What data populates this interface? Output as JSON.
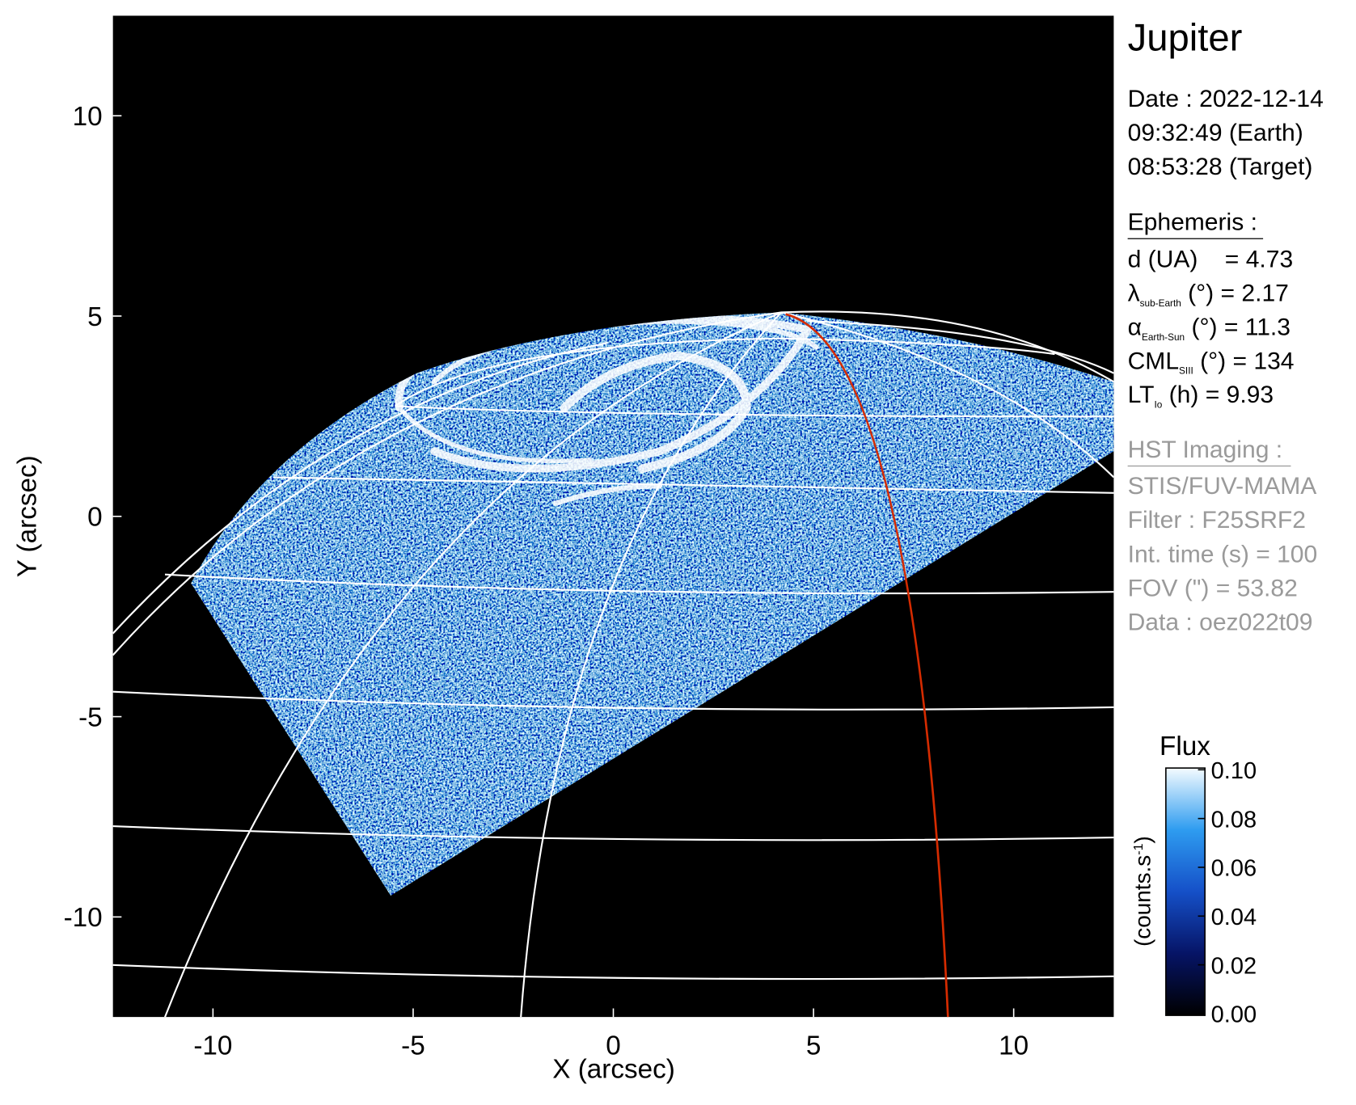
{
  "chart_data": {
    "type": "image",
    "title": "Jupiter",
    "xlabel": "X (arcsec)",
    "ylabel": "Y (arcsec)",
    "xlim": [
      -12.5,
      12.5
    ],
    "ylim": [
      -12.5,
      12.5
    ],
    "xticks": [
      -10,
      -5,
      0,
      5,
      10
    ],
    "yticks": [
      -10,
      -5,
      0,
      5,
      10
    ],
    "colorbar": {
      "title": "Flux",
      "label": "(counts.s",
      "label_sup": "-1",
      "label_end": ")",
      "lim": [
        0,
        0.1
      ],
      "ticks": [
        {
          "value": 0,
          "label": "0.00"
        },
        {
          "value": 0.02,
          "label": "0.02"
        },
        {
          "value": 0.04,
          "label": "0.04"
        },
        {
          "value": 0.06,
          "label": "0.06"
        },
        {
          "value": 0.08,
          "label": "0.08"
        },
        {
          "value": 0.1,
          "label": "0.10"
        }
      ]
    },
    "info": {
      "date_lines": [
        "Date : 2022-12-14",
        "09:32:49 (Earth)",
        "08:53:28 (Target)"
      ],
      "ephemeris_title": "Ephemeris :",
      "ephemeris": [
        {
          "text": "d (UA)    = 4.73"
        },
        {
          "symbol": "λ",
          "sub": "sub-Earth",
          "text": " (°) = 2.17"
        },
        {
          "symbol": "α",
          "sub": "Earth-Sun",
          "text": " (°) = 11.3"
        },
        {
          "symbol": "CML",
          "sub": "SIII",
          "text": " (°) = 134"
        },
        {
          "symbol": "LT",
          "sub": "Io",
          "text": " (h) = 9.93"
        }
      ],
      "hst_title": "HST Imaging :",
      "hst": [
        "STIS/FUV-MAMA",
        "Filter : F25SRF2",
        "Int. time (s) = 100",
        "FOV (\") = 53.82",
        "Data : oez022t09"
      ]
    }
  }
}
